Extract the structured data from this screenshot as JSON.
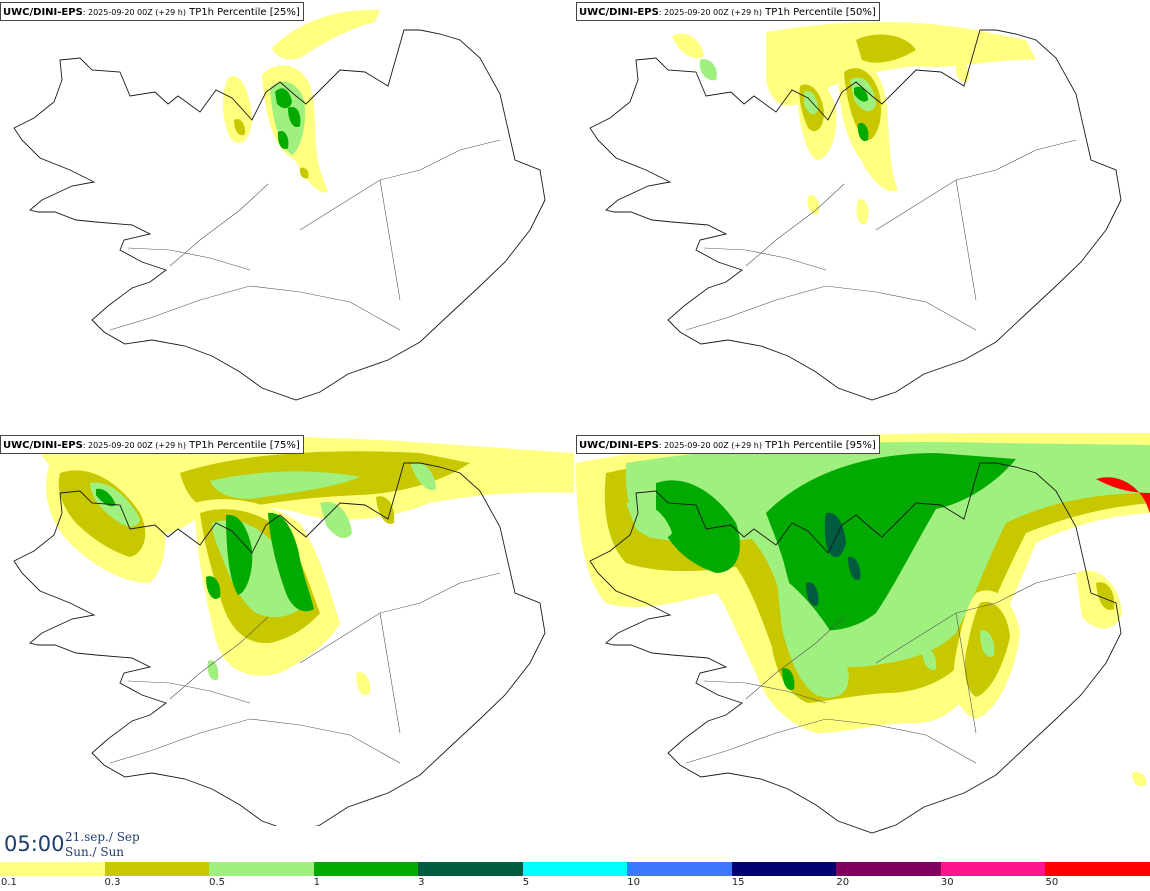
{
  "panels": [
    {
      "id": "p25",
      "model": "UWC/DINI-EPS",
      "init": ": 2025-09-20 00Z (+29 h)",
      "param": " TP1h Percentile [25%]"
    },
    {
      "id": "p50",
      "model": "UWC/DINI-EPS",
      "init": ": 2025-09-20 00Z (+29 h)",
      "param": " TP1h Percentile [50%]"
    },
    {
      "id": "p75",
      "model": "UWC/DINI-EPS",
      "init": ": 2025-09-20 00Z (+29 h)",
      "param": " TP1h Percentile [75%]"
    },
    {
      "id": "p95",
      "model": "UWC/DINI-EPS",
      "init": ": 2025-09-20 00Z (+29 h)",
      "param": " TP1h Percentile [95%]"
    }
  ],
  "valid_time": {
    "time": "05:00",
    "date_line1": "21.sep./ Sep",
    "date_line2": "Sun./ Sun"
  },
  "colorbar": {
    "labels": [
      "0.1",
      "0.3",
      "0.5",
      "1",
      "3",
      "5",
      "10",
      "15",
      "20",
      "30",
      "50"
    ],
    "colors": [
      "#ffff80",
      "#c8c800",
      "#a0f080",
      "#00aa00",
      "#005c40",
      "#00ffff",
      "#3c78ff",
      "#000070",
      "#800060",
      "#ff1490",
      "#ff0000"
    ]
  },
  "map_colors": {
    "coastline": "#1a1a1a",
    "roads": "#555555"
  }
}
